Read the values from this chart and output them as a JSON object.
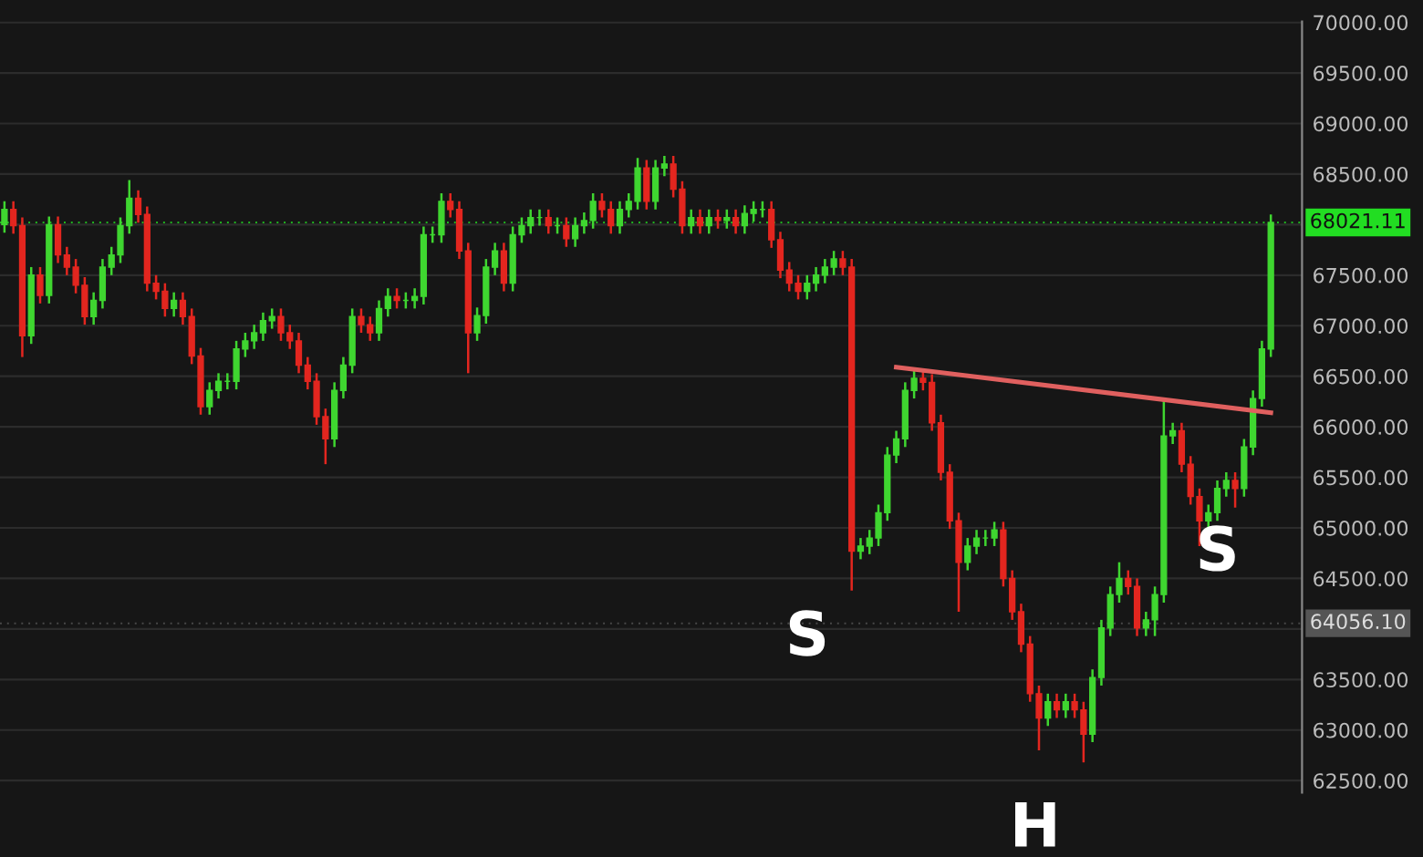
{
  "chart_data": {
    "type": "candlestick",
    "categories": [
      null,
      null,
      null,
      null,
      null,
      null,
      null,
      null,
      null,
      null,
      null,
      null,
      null,
      null,
      null,
      null,
      null,
      null,
      null,
      null,
      null,
      null,
      null,
      null,
      null,
      null,
      null,
      null,
      null,
      null,
      null,
      null,
      null,
      null,
      null,
      null,
      null,
      null,
      null,
      null,
      null,
      null,
      null,
      null,
      null,
      null,
      null,
      null,
      null,
      null,
      null,
      null,
      null,
      null,
      null,
      null,
      null,
      null,
      null,
      null,
      null,
      null,
      null,
      null,
      null,
      null,
      null,
      null,
      null,
      null,
      null,
      null,
      null,
      null,
      null,
      null,
      null,
      null,
      null,
      null,
      null,
      null,
      null,
      null,
      null,
      null,
      null,
      null,
      null,
      null,
      null,
      null,
      null,
      null,
      null,
      null,
      null,
      null,
      null,
      null,
      null,
      null,
      null,
      null,
      null,
      null,
      null,
      null,
      null,
      null,
      null,
      null,
      null,
      null,
      null,
      null,
      null,
      null,
      null,
      null,
      null,
      null,
      null,
      null,
      null,
      null,
      null,
      null,
      null,
      null,
      null,
      null,
      null,
      null,
      null,
      null,
      null,
      null,
      null,
      null,
      null,
      null,
      null
    ],
    "ohlc": [
      [
        68000,
        68230,
        67920,
        68150
      ],
      [
        68150,
        68230,
        67910,
        67990
      ],
      [
        67990,
        68070,
        66690,
        66900
      ],
      [
        66900,
        67580,
        66820,
        67500
      ],
      [
        67500,
        67580,
        67220,
        67300
      ],
      [
        67300,
        68080,
        67220,
        68000
      ],
      [
        68000,
        68080,
        67620,
        67700
      ],
      [
        67700,
        67780,
        67500,
        67580
      ],
      [
        67580,
        67660,
        67320,
        67400
      ],
      [
        67400,
        67480,
        67010,
        67090
      ],
      [
        67090,
        67330,
        67010,
        67250
      ],
      [
        67250,
        67660,
        67170,
        67580
      ],
      [
        67580,
        67780,
        67500,
        67700
      ],
      [
        67700,
        68070,
        67620,
        67990
      ],
      [
        67990,
        68440,
        67910,
        68260
      ],
      [
        68260,
        68340,
        68020,
        68100
      ],
      [
        68100,
        68180,
        67340,
        67420
      ],
      [
        67420,
        67500,
        67260,
        67340
      ],
      [
        67340,
        67420,
        67090,
        67170
      ],
      [
        67170,
        67330,
        67090,
        67250
      ],
      [
        67250,
        67330,
        67010,
        67090
      ],
      [
        67090,
        67170,
        66620,
        66700
      ],
      [
        66700,
        66780,
        66120,
        66200
      ],
      [
        66200,
        66440,
        66120,
        66360
      ],
      [
        66360,
        66530,
        66280,
        66450
      ],
      [
        66450,
        66530,
        66370,
        66450
      ],
      [
        66450,
        66850,
        66370,
        66770
      ],
      [
        66770,
        66930,
        66690,
        66850
      ],
      [
        66850,
        67010,
        66770,
        66930
      ],
      [
        66930,
        67130,
        66850,
        67050
      ],
      [
        67050,
        67170,
        66970,
        67090
      ],
      [
        67090,
        67170,
        66850,
        66930
      ],
      [
        66930,
        67010,
        66770,
        66850
      ],
      [
        66850,
        66930,
        66530,
        66610
      ],
      [
        66610,
        66690,
        66370,
        66450
      ],
      [
        66450,
        66530,
        66020,
        66100
      ],
      [
        66100,
        66180,
        65630,
        65880
      ],
      [
        65880,
        66440,
        65800,
        66360
      ],
      [
        66360,
        66690,
        66280,
        66610
      ],
      [
        66610,
        67170,
        66530,
        67090
      ],
      [
        67090,
        67170,
        66930,
        67010
      ],
      [
        67010,
        67090,
        66850,
        66930
      ],
      [
        66930,
        67250,
        66850,
        67170
      ],
      [
        67170,
        67370,
        67090,
        67290
      ],
      [
        67290,
        67370,
        67170,
        67250
      ],
      [
        67250,
        67330,
        67170,
        67250
      ],
      [
        67250,
        67370,
        67170,
        67290
      ],
      [
        67290,
        67980,
        67210,
        67900
      ],
      [
        67900,
        67980,
        67820,
        67900
      ],
      [
        67900,
        68310,
        67820,
        68230
      ],
      [
        68230,
        68310,
        68070,
        68150
      ],
      [
        68150,
        68230,
        67660,
        67740
      ],
      [
        67740,
        67820,
        66530,
        66930
      ],
      [
        66930,
        67180,
        66850,
        67100
      ],
      [
        67100,
        67660,
        67020,
        67580
      ],
      [
        67580,
        67820,
        67500,
        67740
      ],
      [
        67740,
        67820,
        67340,
        67420
      ],
      [
        67420,
        67980,
        67340,
        67900
      ],
      [
        67900,
        68070,
        67820,
        67990
      ],
      [
        67990,
        68150,
        67910,
        68070
      ],
      [
        68070,
        68150,
        67990,
        68070
      ],
      [
        68070,
        68150,
        67910,
        67990
      ],
      [
        67990,
        68070,
        67910,
        67990
      ],
      [
        67990,
        68070,
        67780,
        67860
      ],
      [
        67860,
        68070,
        67780,
        67990
      ],
      [
        67990,
        68120,
        67910,
        68040
      ],
      [
        68040,
        68310,
        67960,
        68230
      ],
      [
        68230,
        68310,
        68070,
        68150
      ],
      [
        68150,
        68230,
        67910,
        67990
      ],
      [
        67990,
        68230,
        67910,
        68150
      ],
      [
        68150,
        68310,
        68070,
        68230
      ],
      [
        68230,
        68660,
        68150,
        68560
      ],
      [
        68560,
        68640,
        68150,
        68230
      ],
      [
        68230,
        68640,
        68150,
        68560
      ],
      [
        68560,
        68680,
        68480,
        68600
      ],
      [
        68600,
        68680,
        68270,
        68350
      ],
      [
        68350,
        68430,
        67910,
        67990
      ],
      [
        67990,
        68150,
        67910,
        68070
      ],
      [
        68070,
        68150,
        67910,
        67990
      ],
      [
        67990,
        68150,
        67910,
        68070
      ],
      [
        68070,
        68150,
        67960,
        68040
      ],
      [
        68040,
        68150,
        67960,
        68070
      ],
      [
        68070,
        68150,
        67910,
        67990
      ],
      [
        67990,
        68190,
        67910,
        68110
      ],
      [
        68110,
        68230,
        68030,
        68150
      ],
      [
        68150,
        68230,
        68070,
        68150
      ],
      [
        68150,
        68230,
        67770,
        67850
      ],
      [
        67850,
        67930,
        67470,
        67550
      ],
      [
        67550,
        67630,
        67340,
        67420
      ],
      [
        67420,
        67500,
        67260,
        67340
      ],
      [
        67340,
        67500,
        67260,
        67420
      ],
      [
        67420,
        67580,
        67340,
        67500
      ],
      [
        67500,
        67660,
        67420,
        67580
      ],
      [
        67580,
        67740,
        67500,
        67660
      ],
      [
        67660,
        67740,
        67500,
        67580
      ],
      [
        67580,
        67660,
        64380,
        64770
      ],
      [
        64770,
        64900,
        64690,
        64820
      ],
      [
        64820,
        64980,
        64740,
        64900
      ],
      [
        64900,
        65230,
        64820,
        65150
      ],
      [
        65150,
        65800,
        65070,
        65720
      ],
      [
        65720,
        65960,
        65640,
        65880
      ],
      [
        65880,
        66440,
        65800,
        66360
      ],
      [
        66360,
        66560,
        66280,
        66480
      ],
      [
        66480,
        66560,
        66360,
        66440
      ],
      [
        66440,
        66520,
        65960,
        66040
      ],
      [
        66040,
        66120,
        65470,
        65550
      ],
      [
        65550,
        65630,
        64990,
        65070
      ],
      [
        65070,
        65150,
        64170,
        64660
      ],
      [
        64660,
        64900,
        64580,
        64820
      ],
      [
        64820,
        64980,
        64740,
        64900
      ],
      [
        64900,
        64980,
        64820,
        64900
      ],
      [
        64900,
        65060,
        64820,
        64980
      ],
      [
        64980,
        65060,
        64420,
        64500
      ],
      [
        64500,
        64580,
        64090,
        64170
      ],
      [
        64170,
        64250,
        63770,
        63850
      ],
      [
        63850,
        63930,
        63280,
        63360
      ],
      [
        63360,
        63440,
        62800,
        63120
      ],
      [
        63120,
        63360,
        63040,
        63280
      ],
      [
        63280,
        63360,
        63120,
        63200
      ],
      [
        63200,
        63360,
        63120,
        63280
      ],
      [
        63280,
        63360,
        63120,
        63200
      ],
      [
        63200,
        63280,
        62680,
        62960
      ],
      [
        62960,
        63600,
        62880,
        63520
      ],
      [
        63520,
        64090,
        63440,
        64010
      ],
      [
        64010,
        64420,
        63930,
        64340
      ],
      [
        64340,
        64660,
        64260,
        64500
      ],
      [
        64500,
        64580,
        64340,
        64420
      ],
      [
        64420,
        64500,
        63930,
        64010
      ],
      [
        64010,
        64170,
        63930,
        64090
      ],
      [
        64090,
        64420,
        63930,
        64340
      ],
      [
        64340,
        66280,
        64260,
        65910
      ],
      [
        65910,
        66040,
        65830,
        65960
      ],
      [
        65960,
        66040,
        65550,
        65630
      ],
      [
        65630,
        65710,
        65230,
        65310
      ],
      [
        65310,
        65390,
        64820,
        65070
      ],
      [
        65070,
        65230,
        64990,
        65150
      ],
      [
        65150,
        65470,
        65070,
        65390
      ],
      [
        65390,
        65550,
        65310,
        65470
      ],
      [
        65470,
        65550,
        65200,
        65390
      ],
      [
        65390,
        65880,
        65310,
        65800
      ],
      [
        65800,
        66360,
        65720,
        66280
      ],
      [
        66280,
        66850,
        66200,
        66770
      ],
      [
        66770,
        68100,
        66690,
        68021.11
      ]
    ],
    "colors": [
      "#3fd630",
      "#e3261f",
      "#e3261f",
      "#3fd630",
      "#e3261f",
      "#3fd630",
      "#e3261f",
      "#e3261f",
      "#e3261f",
      "#e3261f",
      "#3fd630",
      "#3fd630",
      "#3fd630",
      "#3fd630",
      "#3fd630",
      "#e3261f",
      "#e3261f",
      "#e3261f",
      "#e3261f",
      "#3fd630",
      "#e3261f",
      "#e3261f",
      "#e3261f",
      "#3fd630",
      "#3fd630",
      "#3fd630",
      "#3fd630",
      "#3fd630",
      "#3fd630",
      "#3fd630",
      "#3fd630",
      "#e3261f",
      "#e3261f",
      "#e3261f",
      "#e3261f",
      "#e3261f",
      "#e3261f",
      "#3fd630",
      "#3fd630",
      "#3fd630",
      "#e3261f",
      "#e3261f",
      "#3fd630",
      "#3fd630",
      "#e3261f",
      "#3fd630",
      "#3fd630",
      "#3fd630",
      "#3fd630",
      "#3fd630",
      "#e3261f",
      "#e3261f",
      "#e3261f",
      "#3fd630",
      "#3fd630",
      "#3fd630",
      "#e3261f",
      "#3fd630",
      "#3fd630",
      "#3fd630",
      "#3fd630",
      "#e3261f",
      "#3fd630",
      "#e3261f",
      "#3fd630",
      "#3fd630",
      "#3fd630",
      "#e3261f",
      "#e3261f",
      "#3fd630",
      "#3fd630",
      "#3fd630",
      "#e3261f",
      "#3fd630",
      "#3fd630",
      "#e3261f",
      "#e3261f",
      "#3fd630",
      "#e3261f",
      "#3fd630",
      "#e3261f",
      "#3fd630",
      "#e3261f",
      "#3fd630",
      "#3fd630",
      "#3fd630",
      "#e3261f",
      "#e3261f",
      "#e3261f",
      "#e3261f",
      "#3fd630",
      "#3fd630",
      "#3fd630",
      "#3fd630",
      "#e3261f",
      "#e3261f",
      "#3fd630",
      "#3fd630",
      "#3fd630",
      "#3fd630",
      "#3fd630",
      "#3fd630",
      "#3fd630",
      "#e3261f",
      "#e3261f",
      "#e3261f",
      "#e3261f",
      "#e3261f",
      "#3fd630",
      "#3fd630",
      "#3fd630",
      "#3fd630",
      "#e3261f",
      "#e3261f",
      "#e3261f",
      "#e3261f",
      "#e3261f",
      "#3fd630",
      "#e3261f",
      "#3fd630",
      "#e3261f",
      "#e3261f",
      "#3fd630",
      "#3fd630",
      "#3fd630",
      "#3fd630",
      "#e3261f",
      "#e3261f",
      "#3fd630",
      "#3fd630",
      "#3fd630",
      "#3fd630",
      "#e3261f",
      "#e3261f",
      "#e3261f",
      "#3fd630",
      "#3fd630",
      "#3fd630",
      "#e3261f",
      "#3fd630",
      "#3fd630",
      "#3fd630",
      "#3fd630"
    ],
    "series": [
      {
        "type": "line",
        "color": "#e0605f",
        "values": [
          null,
          null,
          null,
          null,
          null,
          null,
          null,
          null,
          null,
          null,
          null,
          null,
          null,
          null,
          null,
          null,
          null,
          null,
          null,
          null,
          null,
          null,
          null,
          null,
          null,
          null,
          null,
          null,
          null,
          null,
          null,
          null,
          null,
          null,
          null,
          null,
          null,
          null,
          null,
          null,
          null,
          null,
          null,
          null,
          null,
          null,
          null,
          null,
          null,
          null,
          null,
          null,
          null,
          null,
          null,
          null,
          null,
          null,
          null,
          null,
          null,
          null,
          null,
          null,
          null,
          null,
          null,
          null,
          null,
          null,
          null,
          null,
          null,
          null,
          null,
          null,
          null,
          null,
          null,
          null,
          null,
          null,
          null,
          null,
          null,
          null,
          null,
          null,
          null,
          null,
          null,
          null,
          null,
          null,
          null,
          null,
          null,
          null,
          null,
          null,
          66590,
          null,
          null,
          null,
          null,
          null,
          null,
          null,
          null,
          null,
          null,
          null,
          null,
          null,
          null,
          null,
          null,
          null,
          null,
          null,
          null,
          null,
          null,
          null,
          null,
          null,
          null,
          null,
          null,
          null,
          null,
          null,
          null,
          null,
          null,
          null,
          null,
          null,
          null,
          null,
          null,
          null,
          66140
        ]
      }
    ],
    "ylim": [
      62380,
      70010
    ],
    "yticks": [
      {
        "value": 62500,
        "label": "62500.00"
      },
      {
        "value": 63000,
        "label": "63000.00"
      },
      {
        "value": 63500,
        "label": "63500.00"
      },
      {
        "value": 64000,
        "label": null
      },
      {
        "value": 64500,
        "label": "64500.00"
      },
      {
        "value": 65000,
        "label": "65000.00"
      },
      {
        "value": 65500,
        "label": "65500.00"
      },
      {
        "value": 66000,
        "label": "66000.00"
      },
      {
        "value": 66500,
        "label": "66500.00"
      },
      {
        "value": 67000,
        "label": "67000.00"
      },
      {
        "value": 67500,
        "label": "67500.00"
      },
      {
        "value": 68000,
        "label": null
      },
      {
        "value": 68500,
        "label": "68500.00"
      },
      {
        "value": 69000,
        "label": "69000.00"
      },
      {
        "value": 69500,
        "label": "69500.00"
      },
      {
        "value": 70000,
        "label": "70000.00"
      }
    ],
    "ref_lines": [
      {
        "axis": "y",
        "value": 68021.11,
        "label": "68021.11",
        "color": "#22dd22"
      },
      {
        "axis": "y",
        "value": 64056.1,
        "label": "64056.10",
        "color": "#555555"
      }
    ],
    "annotations": [
      "S",
      "H",
      "S"
    ],
    "grid": "y",
    "tick_labels": "y"
  }
}
